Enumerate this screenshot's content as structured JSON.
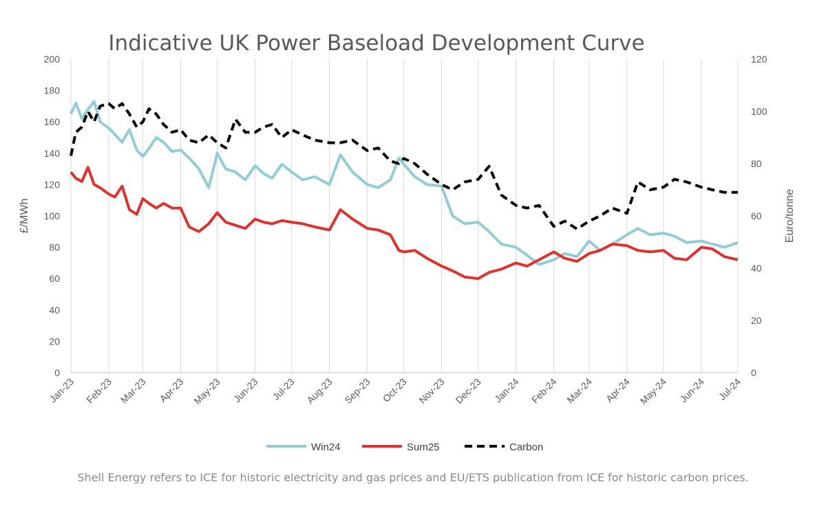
{
  "chart_data": {
    "type": "line",
    "title": "Indicative UK Power Baseload Development Curve",
    "ylabel": "£/MWh",
    "y2label": "Euro/tonne",
    "ylim": [
      0,
      200
    ],
    "y2lim": [
      0,
      120
    ],
    "yticks": [
      "0",
      "20",
      "40",
      "60",
      "80",
      "100",
      "120",
      "140",
      "160",
      "180",
      "200"
    ],
    "y2ticks": [
      "0",
      "20",
      "40",
      "60",
      "80",
      "100",
      "120"
    ],
    "xticks": [
      "Jan-23",
      "Feb-23",
      "Mar-23",
      "Apr-23",
      "May-23",
      "Jun-23",
      "Jul-23",
      "Aug-23",
      "Sep-23",
      "Oct-23",
      "Nov-23",
      "Dec-23",
      "Jan-24",
      "Feb-24",
      "Mar-24",
      "Apr-24",
      "May-24",
      "Jun-24",
      "Jul-24"
    ],
    "grid": "vertical",
    "legend_position": "bottom",
    "x": [
      "2023-01-01",
      "2023-01-05",
      "2023-01-10",
      "2023-01-15",
      "2023-01-20",
      "2023-01-25",
      "2023-02-01",
      "2023-02-06",
      "2023-02-12",
      "2023-02-18",
      "2023-02-24",
      "2023-03-01",
      "2023-03-06",
      "2023-03-12",
      "2023-03-18",
      "2023-03-25",
      "2023-04-01",
      "2023-04-08",
      "2023-04-16",
      "2023-04-24",
      "2023-05-01",
      "2023-05-08",
      "2023-05-16",
      "2023-05-24",
      "2023-06-01",
      "2023-06-08",
      "2023-06-15",
      "2023-06-23",
      "2023-07-01",
      "2023-07-10",
      "2023-07-20",
      "2023-08-01",
      "2023-08-10",
      "2023-08-20",
      "2023-09-01",
      "2023-09-10",
      "2023-09-20",
      "2023-09-27",
      "2023-10-01",
      "2023-10-10",
      "2023-10-20",
      "2023-11-01",
      "2023-11-10",
      "2023-11-20",
      "2023-12-01",
      "2023-12-10",
      "2023-12-20",
      "2024-01-01",
      "2024-01-10",
      "2024-01-20",
      "2024-02-01",
      "2024-02-10",
      "2024-02-20",
      "2024-03-01",
      "2024-03-10",
      "2024-03-20",
      "2024-04-01",
      "2024-04-10",
      "2024-04-20",
      "2024-05-01",
      "2024-05-10",
      "2024-05-20",
      "2024-06-01",
      "2024-06-10",
      "2024-06-20",
      "2024-07-01"
    ],
    "series": [
      {
        "name": "Win24",
        "color": "#92cdd6",
        "style": "solid",
        "axis": "left",
        "values": [
          165,
          172,
          162,
          168,
          173,
          160,
          156,
          152,
          147,
          155,
          142,
          138,
          143,
          150,
          147,
          141,
          142,
          137,
          130,
          118,
          140,
          130,
          128,
          123,
          132,
          127,
          124,
          133,
          128,
          123,
          125,
          120,
          139,
          128,
          120,
          118,
          123,
          137,
          133,
          125,
          120,
          119,
          100,
          95,
          96,
          90,
          82,
          80,
          75,
          69,
          72,
          76,
          74,
          84,
          78,
          82,
          88,
          92,
          88,
          89,
          87,
          83,
          84,
          82,
          80,
          83
        ]
      },
      {
        "name": "Sum25",
        "color": "#e0312d",
        "style": "solid",
        "axis": "left",
        "values": [
          128,
          124,
          122,
          131,
          120,
          118,
          114,
          112,
          119,
          104,
          101,
          111,
          108,
          105,
          108,
          105,
          105,
          93,
          90,
          95,
          102,
          96,
          94,
          92,
          98,
          96,
          95,
          97,
          96,
          95,
          93,
          91,
          104,
          98,
          92,
          91,
          88,
          78,
          77,
          78,
          73,
          68,
          65,
          61,
          60,
          64,
          66,
          70,
          68,
          72,
          77,
          73,
          71,
          76,
          78,
          82,
          81,
          78,
          77,
          78,
          73,
          72,
          80,
          79,
          74,
          72
        ]
      },
      {
        "name": "Carbon",
        "color": "#000000",
        "style": "dashed",
        "axis": "right",
        "values": [
          83,
          92,
          94,
          100,
          96,
          102,
          103,
          101,
          103,
          99,
          94,
          96,
          101,
          99,
          95,
          92,
          93,
          89,
          88,
          91,
          88,
          86,
          97,
          92,
          92,
          94,
          95,
          90,
          93,
          91,
          89,
          88,
          88,
          89,
          85,
          86,
          81,
          80,
          82,
          80,
          76,
          72,
          70,
          73,
          74,
          79,
          68,
          64,
          63,
          64,
          56,
          58,
          55,
          58,
          60,
          63,
          61,
          73,
          70,
          71,
          74,
          73,
          71,
          70,
          69,
          69
        ]
      }
    ]
  },
  "footnote": "Shell Energy refers to ICE for historic electricity and gas prices and EU/ETS publication from ICE for historic carbon prices."
}
